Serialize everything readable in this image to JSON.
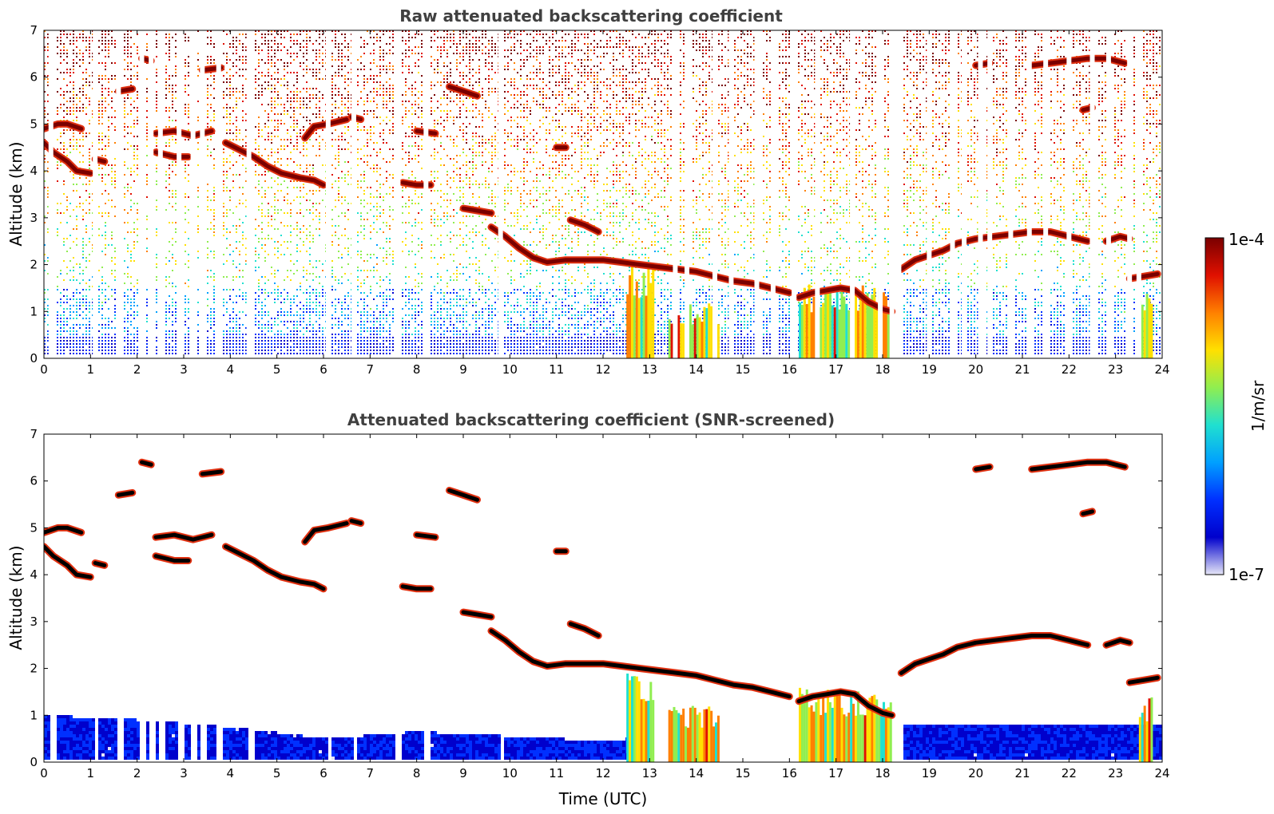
{
  "chart_data": [
    {
      "type": "heatmap",
      "title": "Raw attenuated backscattering coefficient",
      "xlabel": "",
      "ylabel": "Altitude (km)",
      "xlim": [
        0,
        24
      ],
      "ylim": [
        0,
        7
      ],
      "xticks": [
        "0",
        "1",
        "2",
        "3",
        "4",
        "5",
        "6",
        "7",
        "8",
        "9",
        "10",
        "11",
        "12",
        "13",
        "14",
        "15",
        "16",
        "17",
        "18",
        "19",
        "20",
        "21",
        "22",
        "23",
        "24"
      ],
      "yticks": [
        "0",
        "1",
        "2",
        "3",
        "4",
        "5",
        "6",
        "7"
      ],
      "gaps_utc": [
        0.15,
        1.1,
        1.6,
        2.1,
        2.3,
        2.5,
        2.9,
        3.2,
        3.4,
        3.75,
        4.4,
        6.1,
        6.65,
        7.6,
        8.2,
        9.8,
        13.55,
        13.8,
        14.4,
        14.75,
        15.3,
        15.65,
        16.1,
        16.6,
        17.35,
        17.95,
        18.2,
        18.35,
        19.0,
        19.5,
        19.75,
        20.1,
        20.3,
        20.75,
        21.15,
        21.5,
        22.0,
        22.5,
        22.85,
        23.3,
        23.5
      ],
      "cloud_layers": [
        {
          "t": [
            0.0,
            0.3,
            0.5,
            0.8
          ],
          "alt": [
            4.9,
            5.0,
            5.0,
            4.9
          ]
        },
        {
          "t": [
            0.0,
            0.2,
            0.5,
            0.7,
            1.0
          ],
          "alt": [
            4.6,
            4.4,
            4.2,
            4.0,
            3.95
          ]
        },
        {
          "t": [
            1.1,
            1.3
          ],
          "alt": [
            4.25,
            4.2
          ]
        },
        {
          "t": [
            1.6,
            1.9
          ],
          "alt": [
            5.7,
            5.75
          ]
        },
        {
          "t": [
            2.1,
            2.3
          ],
          "alt": [
            6.4,
            6.35
          ]
        },
        {
          "t": [
            2.4,
            2.8,
            3.2,
            3.6
          ],
          "alt": [
            4.8,
            4.85,
            4.75,
            4.85
          ]
        },
        {
          "t": [
            2.4,
            2.8,
            3.1
          ],
          "alt": [
            4.4,
            4.3,
            4.3
          ]
        },
        {
          "t": [
            3.4,
            3.8
          ],
          "alt": [
            6.15,
            6.2
          ]
        },
        {
          "t": [
            3.9,
            4.2,
            4.5,
            4.8,
            5.1,
            5.5,
            5.8,
            6.0
          ],
          "alt": [
            4.6,
            4.45,
            4.3,
            4.1,
            3.95,
            3.85,
            3.8,
            3.7
          ]
        },
        {
          "t": [
            5.6,
            5.8,
            6.1,
            6.5
          ],
          "alt": [
            4.7,
            4.95,
            5.0,
            5.1
          ]
        },
        {
          "t": [
            6.6,
            6.8
          ],
          "alt": [
            5.15,
            5.1
          ]
        },
        {
          "t": [
            7.7,
            8.0,
            8.3
          ],
          "alt": [
            3.75,
            3.7,
            3.7
          ]
        },
        {
          "t": [
            8.0,
            8.4
          ],
          "alt": [
            4.85,
            4.8
          ]
        },
        {
          "t": [
            8.7,
            9.0,
            9.3
          ],
          "alt": [
            5.8,
            5.7,
            5.6
          ]
        },
        {
          "t": [
            9.0,
            9.3,
            9.6
          ],
          "alt": [
            3.2,
            3.15,
            3.1
          ]
        },
        {
          "t": [
            9.6,
            9.9,
            10.2,
            10.5,
            10.8,
            11.2,
            11.6,
            12.0,
            12.4,
            12.8,
            13.2,
            13.6,
            14.0,
            14.4,
            14.8,
            15.2,
            15.6,
            16.0
          ],
          "alt": [
            2.8,
            2.6,
            2.35,
            2.15,
            2.05,
            2.1,
            2.1,
            2.1,
            2.05,
            2.0,
            1.95,
            1.9,
            1.85,
            1.75,
            1.65,
            1.6,
            1.5,
            1.4
          ]
        },
        {
          "t": [
            11.0,
            11.2
          ],
          "alt": [
            4.5,
            4.5
          ]
        },
        {
          "t": [
            11.3,
            11.6,
            11.9
          ],
          "alt": [
            2.95,
            2.85,
            2.7
          ]
        },
        {
          "t": [
            16.2,
            16.5,
            16.8,
            17.1,
            17.4,
            17.7,
            18.0,
            18.2
          ],
          "alt": [
            1.3,
            1.4,
            1.45,
            1.5,
            1.45,
            1.2,
            1.05,
            1.0
          ]
        },
        {
          "t": [
            18.4,
            18.7,
            19.0,
            19.3,
            19.6,
            20.0,
            20.4,
            20.8,
            21.2,
            21.6,
            22.0,
            22.4
          ],
          "alt": [
            1.9,
            2.1,
            2.2,
            2.3,
            2.45,
            2.55,
            2.6,
            2.65,
            2.7,
            2.7,
            2.6,
            2.5
          ]
        },
        {
          "t": [
            20.0,
            20.3
          ],
          "alt": [
            6.25,
            6.3
          ]
        },
        {
          "t": [
            21.2,
            21.6,
            22.0,
            22.4,
            22.8,
            23.2
          ],
          "alt": [
            6.25,
            6.3,
            6.35,
            6.4,
            6.4,
            6.3
          ]
        },
        {
          "t": [
            22.3,
            22.5
          ],
          "alt": [
            5.3,
            5.35
          ]
        },
        {
          "t": [
            22.8,
            23.1,
            23.3
          ],
          "alt": [
            2.5,
            2.6,
            2.55
          ]
        },
        {
          "t": [
            23.3,
            23.6,
            23.9
          ],
          "alt": [
            1.7,
            1.75,
            1.8
          ]
        }
      ],
      "aerosol_columns": [
        {
          "t0": 12.5,
          "t1": 13.1,
          "top": 2.0
        },
        {
          "t0": 13.4,
          "t1": 14.5,
          "top": 1.2
        },
        {
          "t0": 16.2,
          "t1": 18.2,
          "top": 1.6
        },
        {
          "t0": 23.5,
          "t1": 23.8,
          "top": 1.4
        }
      ],
      "boundary_layer_top_km": [
        {
          "t": 0,
          "alt": 1.0
        },
        {
          "t": 2,
          "alt": 0.9
        },
        {
          "t": 4,
          "alt": 0.75
        },
        {
          "t": 6,
          "alt": 0.5
        },
        {
          "t": 8,
          "alt": 0.65
        },
        {
          "t": 10,
          "alt": 0.55
        },
        {
          "t": 12,
          "alt": 0.45
        },
        {
          "t": 12.5,
          "alt": 0.5
        }
      ]
    },
    {
      "type": "heatmap",
      "title": "Attenuated backscattering coefficient (SNR-screened)",
      "xlabel": "Time (UTC)",
      "ylabel": "Altitude (km)",
      "xlim": [
        0,
        24
      ],
      "ylim": [
        0,
        7
      ],
      "xticks": [
        "0",
        "1",
        "2",
        "3",
        "4",
        "5",
        "6",
        "7",
        "8",
        "9",
        "10",
        "11",
        "12",
        "13",
        "14",
        "15",
        "16",
        "17",
        "18",
        "19",
        "20",
        "21",
        "22",
        "23",
        "24"
      ],
      "yticks": [
        "0",
        "1",
        "2",
        "3",
        "4",
        "5",
        "6",
        "7"
      ]
    }
  ],
  "colorbar": {
    "label": "1/m/sr",
    "max_label": "1e-4",
    "min_label": "1e-7",
    "scale": "log",
    "range": [
      1e-07,
      0.0001
    ],
    "colors": [
      "#e6e6f7",
      "#0000cc",
      "#0030ff",
      "#00a0ff",
      "#20e0d0",
      "#90ee50",
      "#ffe000",
      "#ff8000",
      "#e01000",
      "#7a0000"
    ]
  }
}
